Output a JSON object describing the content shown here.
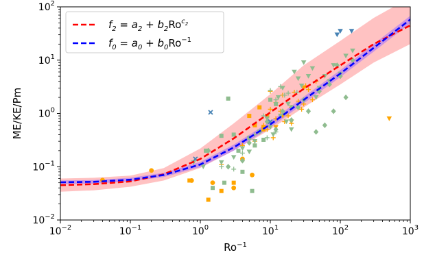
{
  "chart_data": {
    "type": "scatter",
    "xscale": "log",
    "yscale": "log",
    "xlim": [
      0.01,
      1000
    ],
    "ylim": [
      0.01,
      100
    ],
    "xlabel_base": "Ro",
    "xlabel_sup": "−1",
    "ylabel": "ME/KE/Pm",
    "x_tick_values": [
      0.01,
      0.1,
      1,
      10,
      100,
      1000
    ],
    "y_tick_values": [
      0.01,
      0.1,
      1,
      10,
      100
    ],
    "x_ticks": [
      {
        "base": "10",
        "exp": "−2"
      },
      {
        "base": "10",
        "exp": "−1"
      },
      {
        "base": "10",
        "exp": "0"
      },
      {
        "base": "10",
        "exp": "1"
      },
      {
        "base": "10",
        "exp": "2"
      },
      {
        "base": "10",
        "exp": "3"
      }
    ],
    "y_ticks": [
      {
        "base": "10",
        "exp": "−2"
      },
      {
        "base": "10",
        "exp": "−1"
      },
      {
        "base": "10",
        "exp": "0"
      },
      {
        "base": "10",
        "exp": "1"
      },
      {
        "base": "10",
        "exp": "2"
      }
    ],
    "legend_position": "top-left",
    "legend": [
      {
        "label": "f₂ = a₂ + b₂Ro^c₂",
        "color": "#ff0000",
        "style": "dashed"
      },
      {
        "label": "f₀ = a₀ + b₀Ro⁻¹",
        "color": "#0000ff",
        "style": "dashed"
      }
    ],
    "fit_lines": [
      {
        "name": "f2",
        "color": "#ff0000",
        "x": [
          0.01,
          0.03,
          0.1,
          0.3,
          1,
          3,
          10,
          30,
          100,
          300,
          1000
        ],
        "y": [
          0.045,
          0.047,
          0.053,
          0.072,
          0.14,
          0.34,
          1.05,
          2.9,
          8.0,
          20,
          45
        ]
      },
      {
        "name": "f0",
        "color": "#0000ff",
        "x": [
          0.01,
          0.03,
          0.1,
          0.3,
          1,
          3,
          10,
          30,
          100,
          300,
          1000
        ],
        "y": [
          0.051,
          0.052,
          0.057,
          0.07,
          0.11,
          0.23,
          0.62,
          1.8,
          5.6,
          17,
          58
        ]
      }
    ],
    "bands": [
      {
        "color": "#ff9999",
        "opacity": 0.6,
        "x": [
          0.01,
          0.03,
          0.1,
          0.3,
          1,
          3,
          10,
          30,
          100,
          300,
          1000
        ],
        "lower": [
          0.034,
          0.036,
          0.042,
          0.055,
          0.095,
          0.2,
          0.5,
          1.3,
          3.5,
          9,
          20
        ],
        "upper": [
          0.06,
          0.062,
          0.068,
          0.094,
          0.22,
          0.65,
          2.3,
          8.0,
          23,
          62,
          150
        ]
      },
      {
        "color": "#a070ff",
        "opacity": 0.55,
        "x": [
          0.01,
          0.03,
          0.1,
          0.3,
          1,
          3,
          10,
          30,
          100,
          300,
          1000
        ],
        "lower": [
          0.047,
          0.048,
          0.053,
          0.064,
          0.098,
          0.2,
          0.54,
          1.55,
          4.8,
          14.5,
          49
        ],
        "upper": [
          0.055,
          0.056,
          0.062,
          0.077,
          0.123,
          0.26,
          0.71,
          2.05,
          6.5,
          20,
          68
        ]
      }
    ],
    "series": [
      {
        "marker": "circle",
        "color": "#ffa500",
        "points": [
          [
            0.04,
            0.056
          ],
          [
            0.2,
            0.085
          ],
          [
            0.75,
            0.055
          ],
          [
            1.5,
            0.05
          ],
          [
            3,
            0.04
          ],
          [
            5.5,
            0.07
          ],
          [
            8,
            0.55
          ],
          [
            4,
            0.14
          ]
        ]
      },
      {
        "marker": "square",
        "color": "#ffa500",
        "points": [
          [
            0.7,
            0.055
          ],
          [
            1.3,
            0.024
          ],
          [
            2,
            0.035
          ],
          [
            5,
            0.9
          ],
          [
            6,
            0.6
          ],
          [
            7,
            1.3
          ],
          [
            9,
            0.9
          ],
          [
            8,
            0.5
          ],
          [
            3,
            0.05
          ]
        ]
      },
      {
        "marker": "plus",
        "color": "#ffa500",
        "points": [
          [
            2,
            0.11
          ],
          [
            4,
            0.25
          ],
          [
            6,
            0.3
          ],
          [
            8,
            0.6
          ],
          [
            10,
            1.2
          ],
          [
            12,
            1.6
          ],
          [
            15,
            2.2
          ],
          [
            18,
            0.9
          ],
          [
            20,
            1.3
          ],
          [
            22,
            2.5
          ],
          [
            25,
            1.7
          ],
          [
            30,
            1.5
          ],
          [
            35,
            2.8
          ],
          [
            40,
            1.8
          ],
          [
            45,
            4
          ],
          [
            10,
            2.6
          ],
          [
            14,
            1.1
          ],
          [
            16,
            0.7
          ],
          [
            28,
            1.2
          ],
          [
            32,
            3.3
          ],
          [
            12,
            0.8
          ],
          [
            20,
            0.65
          ],
          [
            9,
            0.5
          ],
          [
            11,
            0.35
          ]
        ]
      },
      {
        "marker": "triangle-down",
        "color": "#ffa500",
        "points": [
          [
            12,
            0.55
          ],
          [
            20,
            0.7
          ],
          [
            30,
            3
          ],
          [
            500,
            0.8
          ],
          [
            15,
            0.9
          ]
        ]
      },
      {
        "marker": "square",
        "color": "#8fbc8f",
        "points": [
          [
            1.5,
            0.04
          ],
          [
            1.2,
            0.2
          ],
          [
            2,
            0.38
          ],
          [
            2.5,
            1.9
          ],
          [
            3,
            0.4
          ],
          [
            3.5,
            0.2
          ],
          [
            5,
            0.35
          ],
          [
            5.5,
            0.035
          ],
          [
            6,
            0.25
          ],
          [
            8,
            0.32
          ],
          [
            10,
            1.8
          ],
          [
            12,
            1.5
          ],
          [
            2.2,
            0.05
          ],
          [
            4,
            0.08
          ]
        ]
      },
      {
        "marker": "diamond",
        "color": "#8fbc8f",
        "points": [
          [
            1.3,
            0.2
          ],
          [
            2.5,
            0.1
          ],
          [
            4,
            0.13
          ],
          [
            5,
            0.28
          ],
          [
            7,
            0.45
          ],
          [
            9,
            0.7
          ],
          [
            12,
            0.5
          ],
          [
            15,
            1.1
          ],
          [
            20,
            0.75
          ],
          [
            25,
            1.3
          ],
          [
            35,
            1.1
          ],
          [
            45,
            0.45
          ],
          [
            60,
            0.6
          ],
          [
            80,
            1.1
          ],
          [
            70,
            3.5
          ],
          [
            90,
            8
          ],
          [
            120,
            2
          ],
          [
            150,
            10
          ],
          [
            100,
            5
          ],
          [
            50,
            2.6
          ],
          [
            30,
            1.8
          ]
        ]
      },
      {
        "marker": "triangle-down",
        "color": "#8fbc8f",
        "points": [
          [
            0.8,
            0.12
          ],
          [
            1.1,
            0.1
          ],
          [
            2,
            0.12
          ],
          [
            3,
            0.15
          ],
          [
            4,
            0.22
          ],
          [
            5,
            0.19
          ],
          [
            6,
            0.3
          ],
          [
            7,
            0.45
          ],
          [
            9,
            0.8
          ],
          [
            10,
            0.55
          ],
          [
            11,
            0.4
          ],
          [
            13,
            2
          ],
          [
            15,
            3
          ],
          [
            18,
            1.5
          ],
          [
            20,
            1.3
          ],
          [
            22,
            6
          ],
          [
            25,
            4.5
          ],
          [
            28,
            3.3
          ],
          [
            30,
            9
          ],
          [
            35,
            5
          ],
          [
            40,
            7
          ],
          [
            50,
            3
          ],
          [
            60,
            5
          ],
          [
            70,
            4
          ],
          [
            80,
            8
          ],
          [
            100,
            5.5
          ],
          [
            120,
            12
          ],
          [
            150,
            15
          ],
          [
            20,
            0.5
          ],
          [
            14,
            0.9
          ],
          [
            17,
            0.7
          ],
          [
            45,
            2
          ]
        ]
      },
      {
        "marker": "plus",
        "color": "#8fbc8f",
        "points": [
          [
            2,
            0.1
          ],
          [
            3,
            0.09
          ],
          [
            4,
            0.18
          ],
          [
            6,
            0.4
          ],
          [
            8,
            0.9
          ],
          [
            10,
            2.7
          ],
          [
            12,
            1.8
          ],
          [
            14,
            3.2
          ],
          [
            16,
            2.2
          ],
          [
            18,
            2.4
          ],
          [
            12,
            0.45
          ],
          [
            9,
            0.35
          ],
          [
            24,
            2.5
          ],
          [
            16,
            1.0
          ]
        ]
      },
      {
        "marker": "triangle-down",
        "color": "#4682b4",
        "points": [
          [
            90,
            30
          ],
          [
            100,
            35
          ],
          [
            145,
            35
          ]
        ]
      },
      {
        "marker": "x",
        "color": "#4682b4",
        "points": [
          [
            1.4,
            1.05
          ],
          [
            0.85,
            0.14
          ],
          [
            10,
            0.7
          ]
        ]
      }
    ]
  }
}
